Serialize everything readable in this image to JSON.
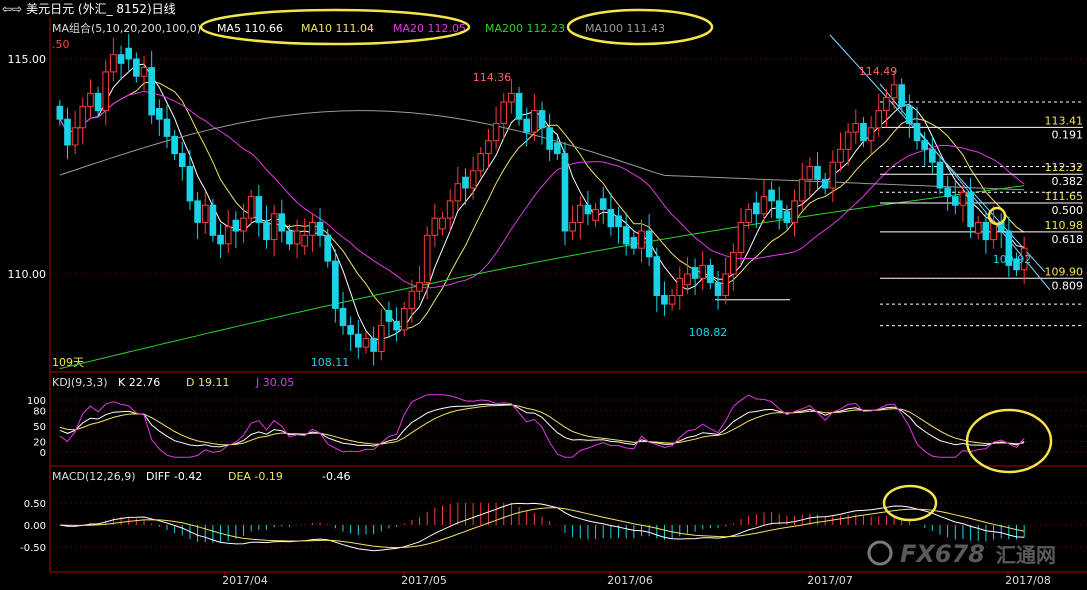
{
  "header": {
    "title": "美元日元 (外汇_ 8152)日线",
    "arrow": "⇦⇨"
  },
  "ma_legend": {
    "label": "MA组合(5,10,20,200,100,0)",
    "ma5": "MA5 110.66",
    "ma10": "MA10 111.04",
    "ma20": "MA20 112.05",
    "ma200": "MA200 112.23",
    "ma100": "MA100 111.43"
  },
  "colors": {
    "up": "#ff3b3b",
    "down": "#19d3e6",
    "ma5": "#ffffff",
    "ma10": "#f2e26b",
    "ma20": "#e238e2",
    "ma200": "#2ed12e",
    "ma100": "#9a9a9a",
    "axis": "#b00000",
    "annot": "#f4e64a"
  },
  "chart_data": [
    {
      "type": "candlestick",
      "y_ticks": [
        "115.00",
        "110.00"
      ],
      "ylim": [
        108.0,
        115.5
      ],
      "x_ticks": [
        "2017/04",
        "2017/05",
        "2017/06",
        "2017/07",
        "2017/08"
      ],
      "partial_tick": ".50",
      "days_label": "109天",
      "annotations": [
        {
          "label": "114.36",
          "price": 114.36
        },
        {
          "label": "114.49",
          "price": 114.49
        },
        {
          "label": "108.11",
          "price": 108.11
        },
        {
          "label": "108.82",
          "price": 108.82
        },
        {
          "label": "109.92",
          "price": 109.92
        }
      ],
      "fib_levels": [
        {
          "price": "113.41",
          "ratio": "0.191"
        },
        {
          "price": "112.32",
          "ratio": "0.382"
        },
        {
          "price": "111.65",
          "ratio": "0.500"
        },
        {
          "price": "110.98",
          "ratio": "0.618"
        },
        {
          "price": "109.90",
          "ratio": "0.809"
        }
      ],
      "closes": [
        113.6,
        113.0,
        113.4,
        113.9,
        114.2,
        113.8,
        114.7,
        115.1,
        114.9,
        115.0,
        114.6,
        114.8,
        113.7,
        113.6,
        113.2,
        112.8,
        112.5,
        111.7,
        111.2,
        111.6,
        110.9,
        110.7,
        111.1,
        111.0,
        111.3,
        111.8,
        111.2,
        110.8,
        111.4,
        111.0,
        110.7,
        111.0,
        110.9,
        111.2,
        110.9,
        110.3,
        109.2,
        108.8,
        108.6,
        108.3,
        108.5,
        108.2,
        108.8,
        108.9,
        108.7,
        109.2,
        109.6,
        109.8,
        110.9,
        111.3,
        111.3,
        111.7,
        112.1,
        112.0,
        112.4,
        112.8,
        113.1,
        113.5,
        114.0,
        114.2,
        113.6,
        113.3,
        113.8,
        113.4,
        112.9,
        112.8,
        111.0,
        111.2,
        111.6,
        111.4,
        111.5,
        111.5,
        111.1,
        111.1,
        110.7,
        110.6,
        111.0,
        110.4,
        109.5,
        109.3,
        109.5,
        109.9,
        110.0,
        109.9,
        110.2,
        109.8,
        109.5,
        110.0,
        110.5,
        111.2,
        111.5,
        111.4,
        111.8,
        111.7,
        111.3,
        111.2,
        111.7,
        112.2,
        112.5,
        112.2,
        112.0,
        112.6,
        112.9,
        113.3,
        113.5,
        113.1,
        113.4,
        113.8,
        114.1,
        114.4,
        113.9,
        113.5,
        113.1,
        112.9,
        112.6,
        112.0,
        111.8,
        111.6,
        111.9,
        111.1,
        111.2,
        110.8,
        111.2,
        111.0,
        110.2,
        110.1,
        110.6
      ]
    },
    {
      "type": "line",
      "name": "KDJ",
      "label": "KDJ(9,3,3)",
      "k": "K 22.76",
      "d": "D 19.11",
      "j": "J 30.05",
      "y_ticks": [
        "100",
        "80",
        "50",
        "20",
        "0"
      ]
    },
    {
      "type": "bar",
      "name": "MACD",
      "label": "MACD(12,26,9)",
      "diff": "DIFF -0.42",
      "dea": "DEA -0.19",
      "macd": "-0.46",
      "y_ticks": [
        "0.50",
        "0.00",
        "-0.50"
      ]
    }
  ],
  "watermark": {
    "text": "FX678",
    "cn": "汇通网"
  }
}
